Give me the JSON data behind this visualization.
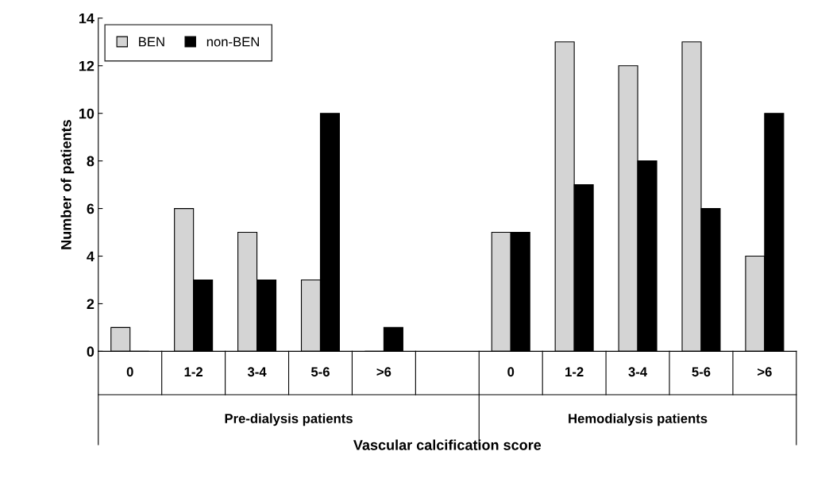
{
  "chart_data": {
    "type": "bar",
    "xlabel": "Vascular calcification score",
    "ylabel": "Number of patients",
    "categories": [
      "0",
      "1-2",
      "3-4",
      "5-6",
      ">6",
      null,
      "0",
      "1-2",
      "3-4",
      "5-6",
      ">6"
    ],
    "series": [
      {
        "name": "BEN",
        "color": "#d4d4d4",
        "values": [
          1,
          6,
          5,
          3,
          0,
          null,
          5,
          13,
          12,
          13,
          4
        ]
      },
      {
        "name": "non-BEN",
        "color": "#000000",
        "values": [
          0,
          3,
          3,
          10,
          1,
          null,
          5,
          7,
          8,
          6,
          10
        ]
      }
    ],
    "ylim": [
      0,
      14
    ],
    "yticks": [
      0,
      2,
      4,
      6,
      8,
      10,
      12,
      14
    ],
    "legend": "top left",
    "grid": false,
    "annotations": [
      "Pre-dialysis patients",
      "Hemodialysis patients"
    ]
  }
}
